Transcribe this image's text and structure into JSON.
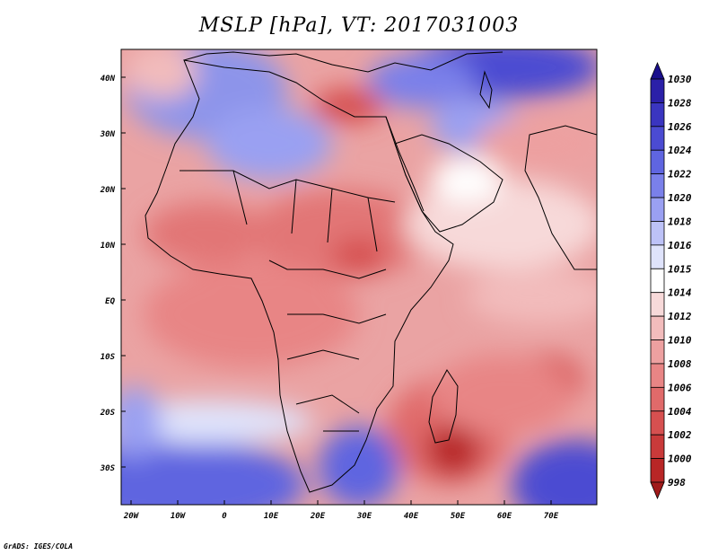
{
  "title": "MSLP [hPa], VT: 2017031003",
  "credit": "GrADS: IGES/COLA",
  "lat_labels": [
    "40N",
    "30N",
    "20N",
    "10N",
    "EQ",
    "10S",
    "20S",
    "30S"
  ],
  "lon_labels": [
    "20W",
    "10W",
    "0",
    "10E",
    "20E",
    "30E",
    "40E",
    "50E",
    "60E",
    "70E"
  ],
  "colorbar": {
    "levels": [
      "1030",
      "1028",
      "1026",
      "1024",
      "1022",
      "1020",
      "1018",
      "1016",
      "1015",
      "1014",
      "1012",
      "1010",
      "1008",
      "1006",
      "1004",
      "1002",
      "1000",
      "998"
    ],
    "colors": [
      "#1a0f8c",
      "#2b20a8",
      "#3a35c0",
      "#4b4bd2",
      "#5f65e0",
      "#7a80ea",
      "#9aa0f2",
      "#bdc2f7",
      "#dfe3fb",
      "#ffffff",
      "#f7d9d9",
      "#f2bcbc",
      "#eda0a0",
      "#e88585",
      "#e06a6a",
      "#d65050",
      "#c93a3a",
      "#b82626",
      "#a01a1a"
    ]
  },
  "map": {
    "lon_range": [
      -22,
      80
    ],
    "lat_range": [
      -37,
      45
    ],
    "region": "Africa, Middle East and western Indian Ocean",
    "projection": "latlon"
  }
}
